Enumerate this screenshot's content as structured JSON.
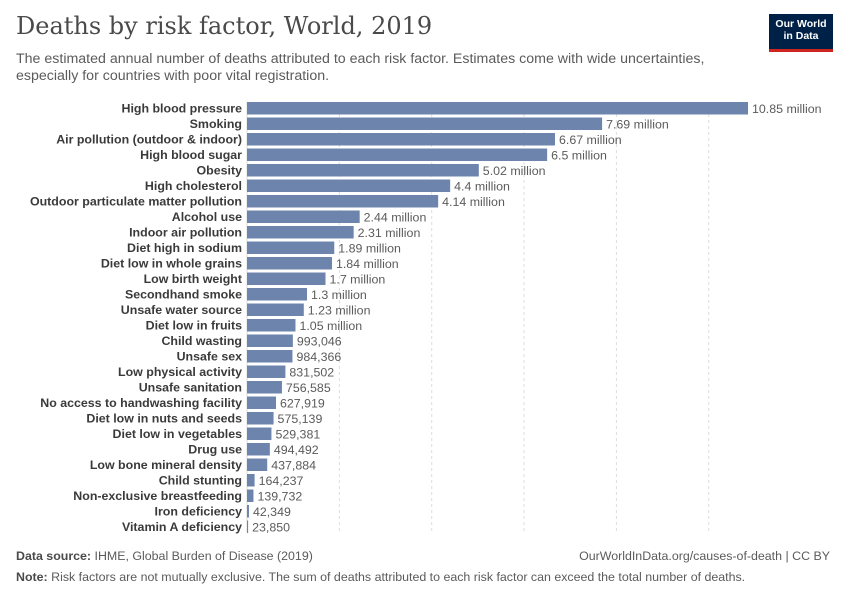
{
  "header": {
    "title": "Deaths by risk factor, World, 2019",
    "subtitle": "The estimated annual number of deaths attributed to each risk factor. Estimates come with wide uncertainties, especially for countries with poor vital registration.",
    "logo_line1": "Our World",
    "logo_line2": "in Data"
  },
  "footer": {
    "source_label": "Data source:",
    "source_text": "IHME, Global Burden of Disease (2019)",
    "url": "OurWorldInData.org/causes-of-death | CC BY",
    "note_label": "Note:",
    "note_text": "Risk factors are not mutually exclusive. The sum of deaths attributed to each risk factor can exceed the total number of deaths."
  },
  "colors": {
    "bar": "#6d84ad",
    "grid": "#dddddd",
    "label": "#3a3a3a",
    "value": "#5b5b5b"
  },
  "chart_data": {
    "type": "bar",
    "orientation": "horizontal",
    "title": "Deaths by risk factor, World, 2019",
    "xlim": [
      0,
      11000000
    ],
    "grid": true,
    "categories": [
      "High blood pressure",
      "Smoking",
      "Air pollution (outdoor & indoor)",
      "High blood sugar",
      "Obesity",
      "High cholesterol",
      "Outdoor particulate matter pollution",
      "Alcohol use",
      "Indoor air pollution",
      "Diet high in sodium",
      "Diet low in whole grains",
      "Low birth weight",
      "Secondhand smoke",
      "Unsafe water source",
      "Diet low in fruits",
      "Child wasting",
      "Unsafe sex",
      "Low physical activity",
      "Unsafe sanitation",
      "No access to handwashing facility",
      "Diet low in nuts and seeds",
      "Diet low in vegetables",
      "Drug use",
      "Low bone mineral density",
      "Child stunting",
      "Non-exclusive breastfeeding",
      "Iron deficiency",
      "Vitamin A deficiency"
    ],
    "values": [
      10850000,
      7690000,
      6670000,
      6500000,
      5020000,
      4400000,
      4140000,
      2440000,
      2310000,
      1890000,
      1840000,
      1700000,
      1300000,
      1230000,
      1050000,
      993046,
      984366,
      831502,
      756585,
      627919,
      575139,
      529381,
      494492,
      437884,
      164237,
      139732,
      42349,
      23850
    ],
    "value_labels": [
      "10.85 million",
      "7.69 million",
      "6.67 million",
      "6.5 million",
      "5.02 million",
      "4.4 million",
      "4.14 million",
      "2.44 million",
      "2.31 million",
      "1.89 million",
      "1.84 million",
      "1.7 million",
      "1.3 million",
      "1.23 million",
      "1.05 million",
      "993,046",
      "984,366",
      "831,502",
      "756,585",
      "627,919",
      "575,139",
      "529,381",
      "494,492",
      "437,884",
      "164,237",
      "139,732",
      "42,349",
      "23,850"
    ]
  }
}
